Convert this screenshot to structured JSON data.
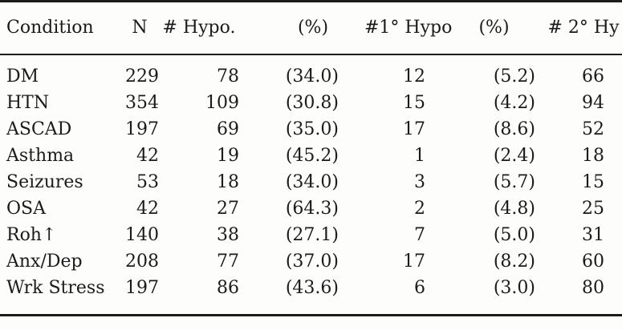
{
  "page": {
    "background_color": "#fdfdfc",
    "text_color": "#1b1b1c",
    "rule_color": "#1b1b1c"
  },
  "table": {
    "columns": [
      {
        "key": "condition",
        "label": "Condition"
      },
      {
        "key": "n",
        "label": "N"
      },
      {
        "key": "num_hypo",
        "label": "# Hypo."
      },
      {
        "key": "pct_hypo",
        "label": "(%)"
      },
      {
        "key": "num_primary_hypo",
        "label": "#1° Hypo"
      },
      {
        "key": "pct_primary_hypo",
        "label": "(%)"
      },
      {
        "key": "num_secondary_hypo",
        "label": "# 2° Hy"
      }
    ],
    "rows": [
      {
        "condition": "DM",
        "n": "229",
        "num_hypo": "78",
        "pct_hypo": "(34.0)",
        "num_primary_hypo": "12",
        "pct_primary_hypo": "(5.2)",
        "num_secondary_hypo": "66"
      },
      {
        "condition": "HTN",
        "n": "354",
        "num_hypo": "109",
        "pct_hypo": "(30.8)",
        "num_primary_hypo": "15",
        "pct_primary_hypo": "(4.2)",
        "num_secondary_hypo": "94"
      },
      {
        "condition": "ASCAD",
        "n": "197",
        "num_hypo": "69",
        "pct_hypo": "(35.0)",
        "num_primary_hypo": "17",
        "pct_primary_hypo": "(8.6)",
        "num_secondary_hypo": "52"
      },
      {
        "condition": "Asthma",
        "n": "42",
        "num_hypo": "19",
        "pct_hypo": "(45.2)",
        "num_primary_hypo": "1",
        "pct_primary_hypo": "(2.4)",
        "num_secondary_hypo": "18"
      },
      {
        "condition": "Seizures",
        "n": "53",
        "num_hypo": "18",
        "pct_hypo": "(34.0)",
        "num_primary_hypo": "3",
        "pct_primary_hypo": "(5.7)",
        "num_secondary_hypo": "15"
      },
      {
        "condition": "OSA",
        "n": "42",
        "num_hypo": "27",
        "pct_hypo": "(64.3)",
        "num_primary_hypo": "2",
        "pct_primary_hypo": "(4.8)",
        "num_secondary_hypo": "25"
      },
      {
        "condition": "Roh↑",
        "n": "140",
        "num_hypo": "38",
        "pct_hypo": "(27.1)",
        "num_primary_hypo": "7",
        "pct_primary_hypo": "(5.0)",
        "num_secondary_hypo": "31"
      },
      {
        "condition": "Anx/Dep",
        "n": "208",
        "num_hypo": "77",
        "pct_hypo": "(37.0)",
        "num_primary_hypo": "17",
        "pct_primary_hypo": "(8.2)",
        "num_secondary_hypo": "60"
      },
      {
        "condition": "Wrk Stress",
        "n": "197",
        "num_hypo": "86",
        "pct_hypo": "(43.6)",
        "num_primary_hypo": "6",
        "pct_primary_hypo": "(3.0)",
        "num_secondary_hypo": "80"
      }
    ]
  }
}
